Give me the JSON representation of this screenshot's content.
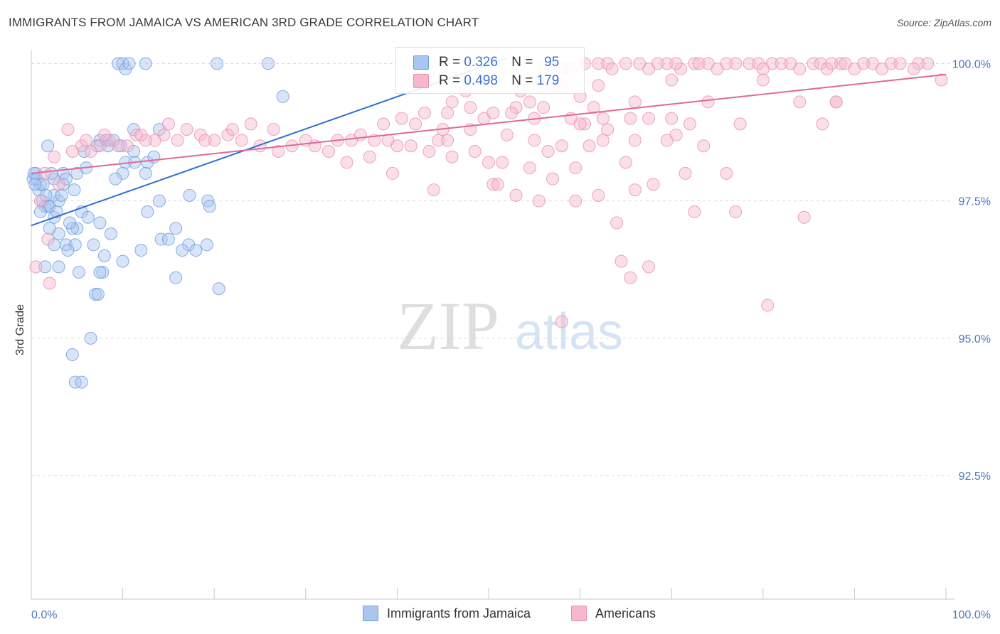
{
  "title": "IMMIGRANTS FROM JAMAICA VS AMERICAN 3RD GRADE CORRELATION CHART",
  "source": "Source: ZipAtlas.com",
  "watermark": {
    "zip": "ZIP",
    "atlas": "atlas"
  },
  "legend_top": {
    "rows": [
      {
        "r_label": "R =",
        "r_value": "0.326",
        "n_label": "N =",
        "n_value": "95"
      },
      {
        "r_label": "R =",
        "r_value": "0.498",
        "n_label": "N =",
        "n_value": "179"
      }
    ]
  },
  "legend_bottom": [
    {
      "label": "Immigrants from Jamaica"
    },
    {
      "label": "Americans"
    }
  ],
  "colors": {
    "blue_fill": "#a9c6ef",
    "blue_stroke": "#6f9bdc",
    "blue_line": "#2f6fd4",
    "pink_fill": "#f5b8cd",
    "pink_stroke": "#ea8fb0",
    "pink_line": "#e0689a",
    "grid": "#dcdcdc",
    "axis_label": "#4a78c2"
  },
  "chart_data": {
    "type": "scatter",
    "ylabel": "3rd Grade",
    "xlabel": "",
    "xlim": [
      0,
      100
    ],
    "ylim": [
      90.25,
      100.25
    ],
    "x_tick_labels": [
      "0.0%",
      "100.0%"
    ],
    "y_ticks": [
      92.5,
      95.0,
      97.5,
      100.0
    ],
    "y_tick_labels": [
      "92.5%",
      "95.0%",
      "97.5%",
      "100.0%"
    ],
    "grid": true,
    "series": [
      {
        "name": "Immigrants from Jamaica",
        "R": 0.326,
        "N": 95,
        "trend": {
          "x0": 0,
          "y0": 97.05,
          "x1": 52,
          "y1": 100.1
        },
        "points": [
          [
            9.5,
            100.0
          ],
          [
            10.0,
            100.0
          ],
          [
            10.3,
            99.9
          ],
          [
            10.7,
            100.0
          ],
          [
            12.5,
            100.0
          ],
          [
            20.3,
            100.0
          ],
          [
            25.9,
            100.0
          ],
          [
            27.5,
            99.4
          ],
          [
            11.2,
            98.8
          ],
          [
            14.0,
            98.8
          ],
          [
            7.5,
            98.6
          ],
          [
            8.2,
            98.6
          ],
          [
            1.8,
            98.5
          ],
          [
            7.2,
            98.5
          ],
          [
            8.4,
            98.5
          ],
          [
            11.2,
            98.4
          ],
          [
            10.3,
            98.2
          ],
          [
            11.3,
            98.2
          ],
          [
            12.7,
            98.2
          ],
          [
            5.0,
            98.0
          ],
          [
            3.5,
            98.0
          ],
          [
            0.5,
            98.0
          ],
          [
            10.0,
            98.0
          ],
          [
            9.2,
            97.9
          ],
          [
            12.5,
            98.0
          ],
          [
            0.2,
            97.9
          ],
          [
            2.5,
            97.9
          ],
          [
            3.5,
            97.8
          ],
          [
            3.8,
            97.9
          ],
          [
            0.8,
            97.7
          ],
          [
            1.0,
            97.8
          ],
          [
            2.5,
            97.6
          ],
          [
            14.0,
            97.5
          ],
          [
            17.3,
            97.6
          ],
          [
            19.3,
            97.5
          ],
          [
            1.2,
            97.5
          ],
          [
            1.8,
            97.4
          ],
          [
            1.5,
            97.4
          ],
          [
            2.0,
            97.4
          ],
          [
            3.0,
            97.5
          ],
          [
            12.7,
            97.3
          ],
          [
            19.5,
            97.4
          ],
          [
            1.0,
            97.3
          ],
          [
            2.5,
            97.2
          ],
          [
            5.5,
            97.3
          ],
          [
            6.2,
            97.2
          ],
          [
            7.5,
            97.1
          ],
          [
            5.0,
            97.0
          ],
          [
            4.5,
            97.0
          ],
          [
            15.8,
            97.0
          ],
          [
            3.0,
            96.9
          ],
          [
            8.7,
            96.9
          ],
          [
            14.2,
            96.8
          ],
          [
            15.0,
            96.8
          ],
          [
            2.5,
            96.7
          ],
          [
            3.8,
            96.7
          ],
          [
            4.8,
            96.7
          ],
          [
            17.2,
            96.7
          ],
          [
            19.2,
            96.7
          ],
          [
            4.0,
            96.6
          ],
          [
            10.0,
            96.4
          ],
          [
            1.5,
            96.3
          ],
          [
            3.0,
            96.3
          ],
          [
            5.2,
            96.2
          ],
          [
            7.8,
            96.2
          ],
          [
            7.5,
            96.2
          ],
          [
            15.8,
            96.1
          ],
          [
            20.5,
            95.9
          ],
          [
            7.0,
            95.8
          ],
          [
            7.3,
            95.8
          ],
          [
            6.5,
            95.0
          ],
          [
            4.5,
            94.7
          ],
          [
            4.8,
            94.2
          ],
          [
            5.5,
            94.2
          ],
          [
            0.3,
            98.0
          ],
          [
            0.6,
            97.9
          ],
          [
            1.3,
            97.8
          ],
          [
            2.2,
            98.0
          ],
          [
            6.0,
            98.1
          ],
          [
            9.0,
            98.6
          ],
          [
            13.4,
            98.3
          ],
          [
            0.4,
            97.8
          ],
          [
            1.6,
            97.6
          ],
          [
            2.8,
            97.3
          ],
          [
            4.2,
            97.1
          ],
          [
            6.8,
            96.7
          ],
          [
            8.0,
            96.5
          ],
          [
            12.0,
            96.6
          ],
          [
            16.5,
            96.6
          ],
          [
            18.0,
            96.6
          ],
          [
            2.0,
            97.0
          ],
          [
            3.3,
            97.6
          ],
          [
            4.7,
            97.7
          ],
          [
            5.8,
            98.4
          ],
          [
            9.8,
            98.5
          ]
        ]
      },
      {
        "name": "Americans",
        "R": 0.498,
        "N": 179,
        "trend": {
          "x0": 0,
          "y0": 98.0,
          "x1": 100,
          "y1": 99.8
        },
        "points": [
          [
            60.5,
            100.0
          ],
          [
            63.0,
            100.0
          ],
          [
            65.0,
            100.0
          ],
          [
            68.5,
            100.0
          ],
          [
            69.5,
            100.0
          ],
          [
            72.5,
            100.0
          ],
          [
            73.0,
            100.0
          ],
          [
            76.0,
            100.0
          ],
          [
            77.0,
            100.0
          ],
          [
            78.5,
            100.0
          ],
          [
            79.5,
            100.0
          ],
          [
            81.0,
            100.0
          ],
          [
            83.0,
            100.0
          ],
          [
            85.5,
            100.0
          ],
          [
            86.3,
            100.0
          ],
          [
            88.5,
            100.0
          ],
          [
            89.0,
            100.0
          ],
          [
            91.0,
            100.0
          ],
          [
            92.0,
            100.0
          ],
          [
            94.0,
            100.0
          ],
          [
            95.0,
            100.0
          ],
          [
            97.0,
            100.0
          ],
          [
            98.0,
            100.0
          ],
          [
            56.0,
            99.9
          ],
          [
            59.0,
            99.9
          ],
          [
            63.5,
            99.9
          ],
          [
            67.5,
            99.9
          ],
          [
            71.0,
            99.9
          ],
          [
            75.0,
            99.9
          ],
          [
            80.0,
            99.9
          ],
          [
            84.0,
            99.9
          ],
          [
            87.0,
            99.9
          ],
          [
            90.0,
            99.9
          ],
          [
            93.0,
            99.9
          ],
          [
            96.5,
            99.9
          ],
          [
            58.0,
            99.9
          ],
          [
            62.0,
            100.0
          ],
          [
            66.5,
            100.0
          ],
          [
            70.5,
            100.0
          ],
          [
            74.0,
            100.0
          ],
          [
            82.0,
            100.0
          ],
          [
            87.5,
            100.0
          ],
          [
            99.5,
            99.7
          ],
          [
            80.0,
            99.7
          ],
          [
            62.0,
            99.6
          ],
          [
            70.0,
            99.7
          ],
          [
            47.5,
            99.5
          ],
          [
            53.5,
            99.5
          ],
          [
            55.5,
            99.6
          ],
          [
            57.0,
            99.6
          ],
          [
            58.0,
            99.6
          ],
          [
            60.0,
            99.4
          ],
          [
            46.0,
            99.3
          ],
          [
            48.0,
            99.2
          ],
          [
            53.0,
            99.2
          ],
          [
            54.5,
            99.3
          ],
          [
            56.0,
            99.2
          ],
          [
            61.5,
            99.2
          ],
          [
            66.0,
            99.3
          ],
          [
            70.0,
            99.0
          ],
          [
            74.0,
            99.3
          ],
          [
            84.0,
            99.3
          ],
          [
            88.0,
            99.3
          ],
          [
            43.0,
            99.1
          ],
          [
            45.5,
            99.1
          ],
          [
            49.5,
            99.0
          ],
          [
            50.5,
            99.1
          ],
          [
            52.5,
            99.1
          ],
          [
            55.0,
            99.0
          ],
          [
            59.0,
            99.0
          ],
          [
            60.5,
            98.9
          ],
          [
            62.5,
            99.0
          ],
          [
            67.5,
            99.0
          ],
          [
            72.0,
            98.9
          ],
          [
            77.5,
            98.9
          ],
          [
            38.5,
            98.9
          ],
          [
            40.5,
            99.0
          ],
          [
            42.0,
            98.9
          ],
          [
            45.0,
            98.8
          ],
          [
            48.0,
            98.8
          ],
          [
            52.0,
            98.7
          ],
          [
            55.0,
            98.6
          ],
          [
            58.0,
            98.5
          ],
          [
            62.5,
            98.6
          ],
          [
            66.0,
            98.6
          ],
          [
            69.5,
            98.6
          ],
          [
            73.5,
            98.5
          ],
          [
            36.0,
            98.7
          ],
          [
            37.5,
            98.6
          ],
          [
            39.0,
            98.6
          ],
          [
            40.0,
            98.5
          ],
          [
            41.5,
            98.5
          ],
          [
            43.5,
            98.4
          ],
          [
            46.0,
            98.3
          ],
          [
            48.5,
            98.4
          ],
          [
            50.0,
            98.2
          ],
          [
            51.5,
            98.2
          ],
          [
            54.5,
            98.1
          ],
          [
            59.5,
            98.1
          ],
          [
            65.0,
            98.2
          ],
          [
            71.5,
            98.0
          ],
          [
            30.0,
            98.6
          ],
          [
            31.0,
            98.5
          ],
          [
            32.5,
            98.4
          ],
          [
            33.5,
            98.6
          ],
          [
            35.0,
            98.6
          ],
          [
            28.5,
            98.5
          ],
          [
            27.0,
            98.4
          ],
          [
            25.0,
            98.5
          ],
          [
            23.0,
            98.6
          ],
          [
            21.5,
            98.7
          ],
          [
            20.0,
            98.6
          ],
          [
            18.5,
            98.7
          ],
          [
            17.0,
            98.8
          ],
          [
            16.0,
            98.6
          ],
          [
            14.5,
            98.7
          ],
          [
            13.5,
            98.6
          ],
          [
            12.5,
            98.6
          ],
          [
            11.5,
            98.7
          ],
          [
            10.5,
            98.5
          ],
          [
            9.5,
            98.5
          ],
          [
            8.5,
            98.6
          ],
          [
            7.5,
            98.5
          ],
          [
            6.5,
            98.4
          ],
          [
            5.5,
            98.5
          ],
          [
            4.5,
            98.4
          ],
          [
            2.5,
            98.3
          ],
          [
            1.5,
            98.0
          ],
          [
            3.0,
            97.8
          ],
          [
            1.0,
            97.5
          ],
          [
            0.5,
            96.3
          ],
          [
            2.0,
            96.0
          ],
          [
            1.8,
            96.8
          ],
          [
            26.5,
            98.8
          ],
          [
            24.0,
            98.9
          ],
          [
            22.0,
            98.8
          ],
          [
            19.0,
            98.6
          ],
          [
            15.0,
            98.9
          ],
          [
            12.0,
            98.7
          ],
          [
            8.0,
            98.7
          ],
          [
            6.0,
            98.6
          ],
          [
            4.0,
            98.8
          ],
          [
            34.5,
            98.2
          ],
          [
            37.0,
            98.3
          ],
          [
            39.5,
            98.0
          ],
          [
            44.0,
            97.7
          ],
          [
            50.5,
            97.8
          ],
          [
            51.0,
            97.8
          ],
          [
            53.0,
            97.6
          ],
          [
            55.5,
            97.5
          ],
          [
            59.5,
            97.5
          ],
          [
            62.0,
            97.6
          ],
          [
            66.0,
            97.7
          ],
          [
            72.5,
            97.3
          ],
          [
            77.0,
            97.3
          ],
          [
            84.5,
            97.2
          ],
          [
            76.0,
            98.0
          ],
          [
            68.0,
            97.8
          ],
          [
            57.0,
            97.9
          ],
          [
            64.0,
            97.1
          ],
          [
            64.5,
            96.4
          ],
          [
            65.5,
            96.1
          ],
          [
            67.5,
            96.3
          ],
          [
            80.5,
            95.6
          ],
          [
            58.0,
            95.3
          ],
          [
            88.0,
            99.3
          ],
          [
            86.5,
            98.9
          ],
          [
            63.0,
            98.8
          ],
          [
            44.5,
            98.6
          ],
          [
            45.5,
            98.6
          ],
          [
            56.5,
            98.4
          ],
          [
            61.0,
            98.5
          ],
          [
            70.5,
            98.7
          ],
          [
            60.0,
            98.9
          ],
          [
            65.5,
            99.0
          ]
        ]
      }
    ]
  }
}
